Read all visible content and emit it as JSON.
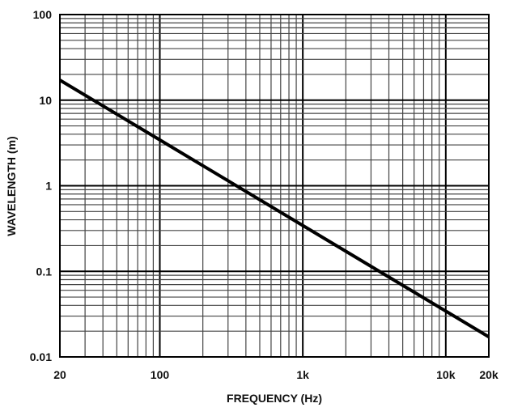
{
  "chart_data": {
    "type": "line",
    "title": "",
    "xlabel": "FREQUENCY (Hz)",
    "ylabel": "WAVELENGTH (m)",
    "xscale": "log",
    "yscale": "log",
    "xlim": [
      20,
      20000
    ],
    "ylim": [
      0.01,
      100
    ],
    "grid": true,
    "x_ticks": [
      {
        "value": 20,
        "label": "20"
      },
      {
        "value": 100,
        "label": "100"
      },
      {
        "value": 1000,
        "label": "1k"
      },
      {
        "value": 10000,
        "label": "10k"
      },
      {
        "value": 20000,
        "label": "20k"
      }
    ],
    "y_ticks": [
      {
        "value": 100,
        "label": "100"
      },
      {
        "value": 10,
        "label": "10"
      },
      {
        "value": 1,
        "label": "1"
      },
      {
        "value": 0.1,
        "label": "0.1"
      },
      {
        "value": 0.01,
        "label": "0.01"
      }
    ],
    "series": [
      {
        "name": "wavelength",
        "color": "#000000",
        "x": [
          20,
          100,
          1000,
          10000,
          20000
        ],
        "y": [
          17.15,
          3.43,
          0.343,
          0.0343,
          0.01715
        ]
      }
    ]
  }
}
